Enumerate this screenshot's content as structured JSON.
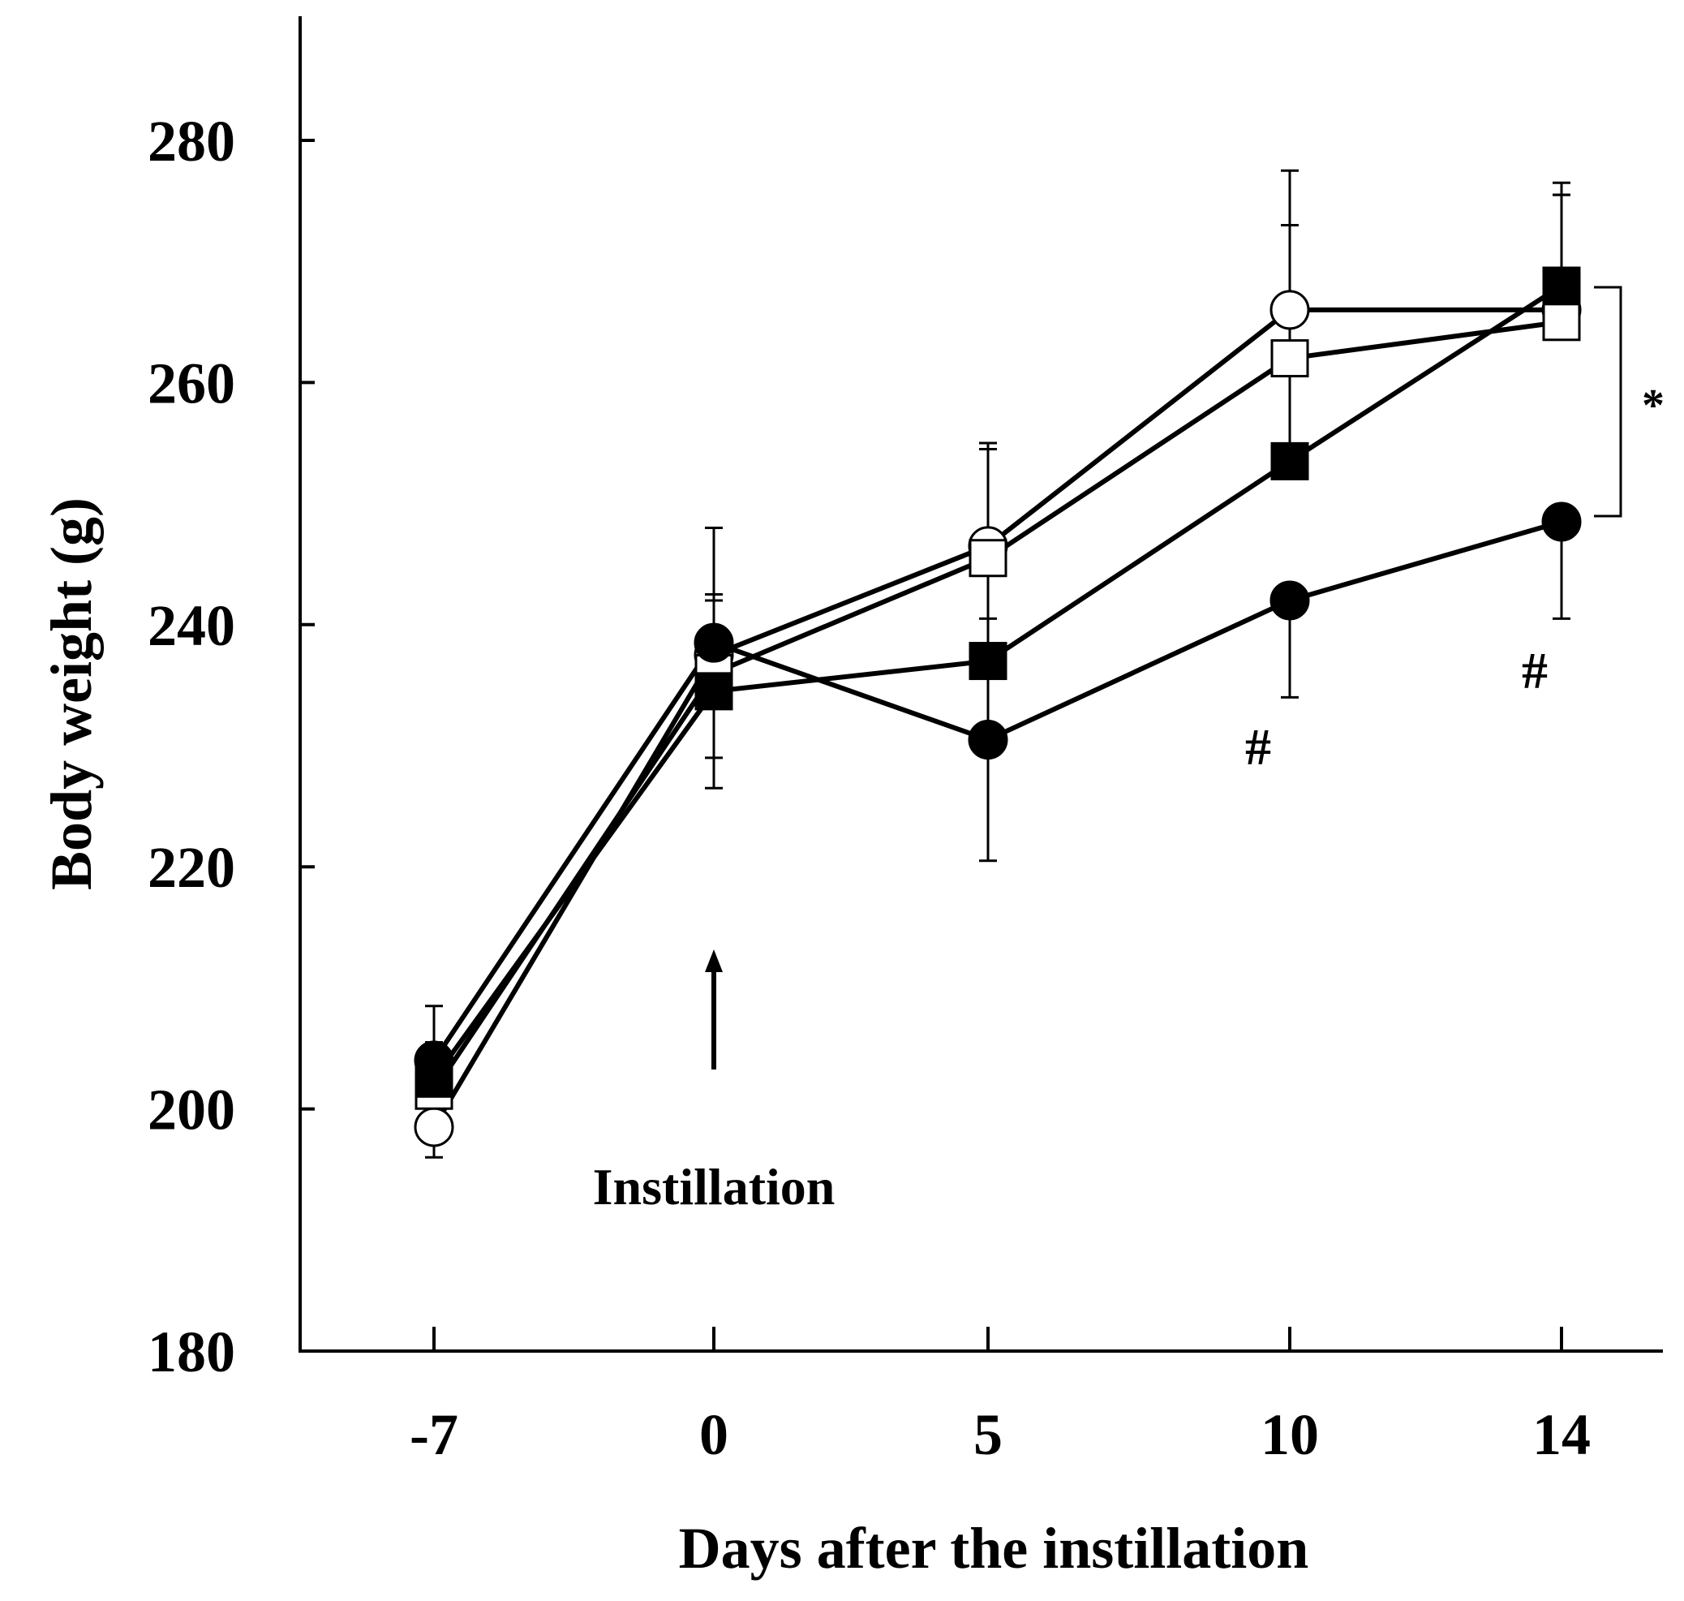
{
  "chart_data": {
    "type": "line",
    "title": "",
    "xlabel": "Days after the instillation",
    "ylabel": "Body weight (g)",
    "x_ticks": [
      "-7",
      "0",
      "5",
      "10",
      "14"
    ],
    "x_values": [
      -7,
      0,
      5,
      10,
      14
    ],
    "ylim": [
      180,
      290
    ],
    "y_ticks": [
      180,
      200,
      220,
      240,
      260,
      280
    ],
    "series": [
      {
        "name": "open circle",
        "marker": "circle",
        "filled": false,
        "values": [
          198.5,
          237.5,
          246.5,
          266.0,
          266.0
        ],
        "errors": [
          2.5,
          5.0,
          8.0,
          11.5,
          9.5
        ]
      },
      {
        "name": "open square",
        "marker": "square",
        "filled": false,
        "values": [
          201.5,
          236.0,
          245.5,
          262.0,
          265.0
        ],
        "errors": [
          3.0,
          6.0,
          9.5,
          11.0,
          10.5
        ]
      },
      {
        "name": "filled square",
        "marker": "square",
        "filled": true,
        "values": [
          202.5,
          234.5,
          237.0,
          253.5,
          268.0
        ],
        "errors": [
          3.0,
          8.0,
          8.0,
          8.0,
          8.5
        ]
      },
      {
        "name": "filled circle",
        "marker": "circle",
        "filled": true,
        "values": [
          204.0,
          238.5,
          230.5,
          242.0,
          248.5
        ],
        "errors": [
          4.5,
          9.5,
          10.0,
          8.0,
          8.0
        ]
      }
    ],
    "annotations": {
      "instillation_label": "Instillation",
      "hash_day10": "#",
      "hash_day14": "#",
      "significance": "*"
    }
  }
}
